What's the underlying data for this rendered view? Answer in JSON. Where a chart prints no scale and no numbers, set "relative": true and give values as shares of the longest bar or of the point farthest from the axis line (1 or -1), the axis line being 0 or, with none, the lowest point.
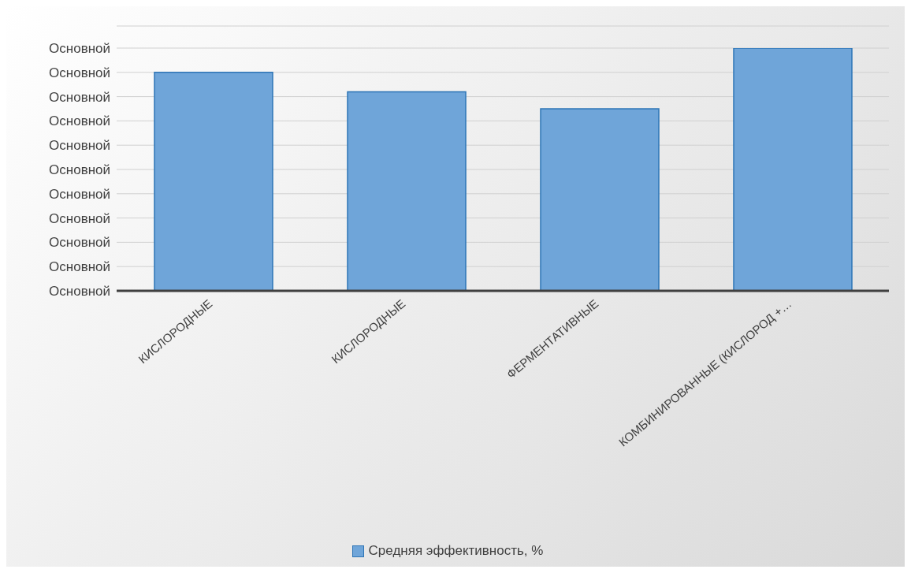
{
  "chart_data": {
    "type": "bar",
    "relative": true,
    "categories": [
      "КИСЛОРОДНЫЕ",
      "КИСЛОРОДНЫЕ",
      "ФЕРМЕНТАТИВНЫЕ",
      "КОМБИНИРОВАННЫЕ (КИСЛОРОД +…"
    ],
    "series": [
      {
        "name": "Средняя эффективность, %",
        "color": "#6fa5d9",
        "values": [
          0.9,
          0.82,
          0.75,
          1
        ]
      }
    ],
    "annotations": [
      "Основной",
      "Основной",
      "Основной",
      "Основной",
      "Основной",
      "Основной",
      "Основной",
      "Основной",
      "Основной",
      "Основной",
      "Основной"
    ],
    "grid": "y",
    "legend": "bottom"
  }
}
